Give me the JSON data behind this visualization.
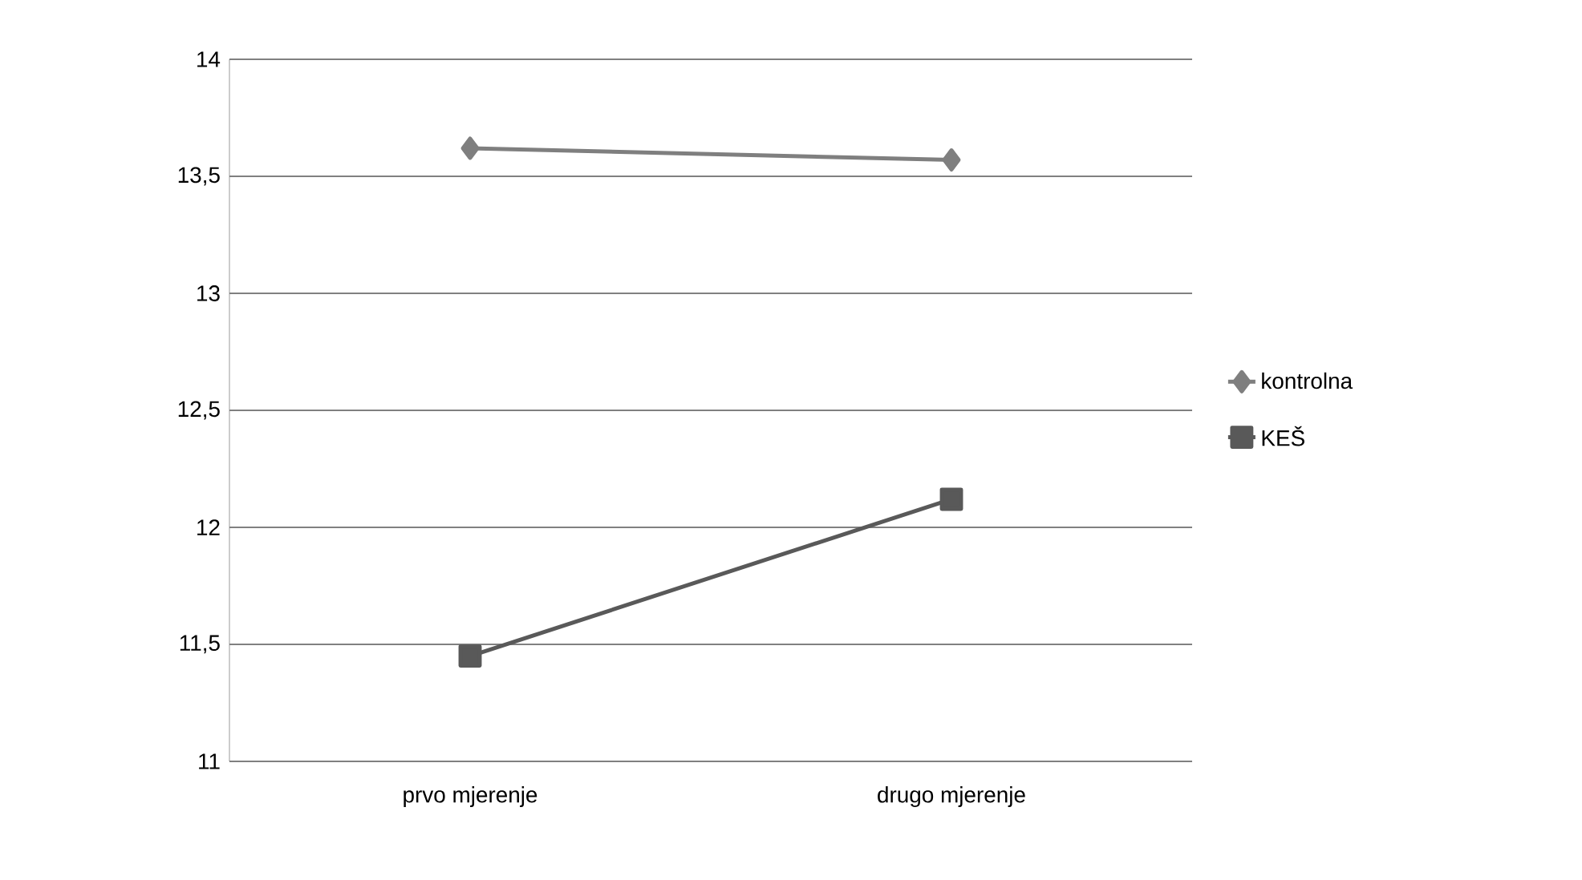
{
  "chart_data": {
    "type": "line",
    "categories": [
      "prvo mjerenje",
      "drugo mjerenje"
    ],
    "series": [
      {
        "name": "kontrolna",
        "color": "#7f7f7f",
        "marker": "diamond",
        "values": [
          13.62,
          13.57
        ]
      },
      {
        "name": "KEŠ",
        "color": "#595959",
        "marker": "square",
        "values": [
          11.45,
          12.12
        ]
      }
    ],
    "ylim": [
      11,
      14
    ],
    "yticks": [
      {
        "value": 11,
        "label": "11"
      },
      {
        "value": 11.5,
        "label": "11,5"
      },
      {
        "value": 12,
        "label": "12"
      },
      {
        "value": 12.5,
        "label": "12,5"
      },
      {
        "value": 13,
        "label": "13"
      },
      {
        "value": 13.5,
        "label": "13,5"
      },
      {
        "value": 14,
        "label": "14"
      }
    ],
    "grid": "y",
    "legend": "right",
    "line_style": "solid"
  }
}
